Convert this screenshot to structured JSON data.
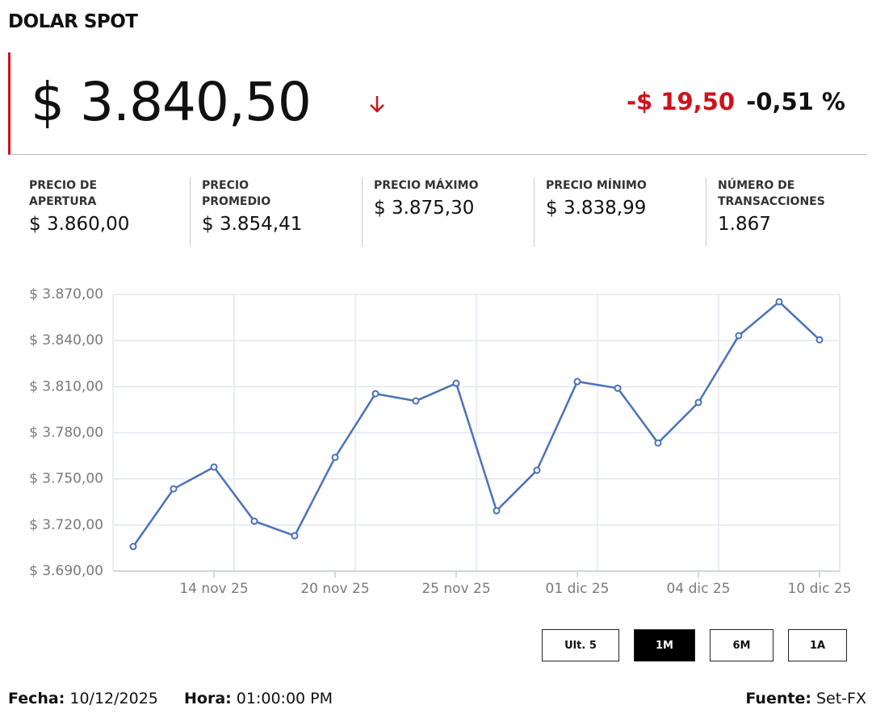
{
  "header": {
    "title": "DOLAR SPOT"
  },
  "quote": {
    "price": "$ 3.840,50",
    "change": "-$ 19,50",
    "change_percent": "-0,51 %"
  },
  "stats": [
    {
      "label": "PRECIO DE\nAPERTURA",
      "value": "$ 3.860,00"
    },
    {
      "label": "PRECIO\nPROMEDIO",
      "value": "$ 3.854,41"
    },
    {
      "label": "PRECIO MÁXIMO",
      "value": "$ 3.875,30"
    },
    {
      "label": "PRECIO MÍNIMO",
      "value": "$ 3.838,99"
    },
    {
      "label": "NÚMERO DE\nTRANSACCIONES",
      "value": "1.867"
    }
  ],
  "chart_data": {
    "type": "line",
    "categories": [
      null,
      null,
      "14 nov 25",
      null,
      null,
      "20 nov 25",
      null,
      null,
      "25 nov 25",
      null,
      null,
      "01 dic 25",
      null,
      null,
      "04 dic 25",
      null,
      null,
      "10 dic 25"
    ],
    "values": [
      3706,
      3743.5,
      3757.7,
      3722.5,
      3713,
      3764,
      3805.4,
      3800.7,
      3812.2,
      3729.3,
      3755.6,
      3813.3,
      3809,
      3773.4,
      3799.7,
      3843.2,
      3865.2,
      3840.5
    ],
    "color": "#4a72b8",
    "ylim": [
      3690,
      3870
    ],
    "yticks": [
      {
        "value": 3690,
        "label": "$ 3.690,00"
      },
      {
        "value": 3720,
        "label": "$ 3.720,00"
      },
      {
        "value": 3750,
        "label": "$ 3.750,00"
      },
      {
        "value": 3780,
        "label": "$ 3.780,00"
      },
      {
        "value": 3810,
        "label": "$ 3.810,00"
      },
      {
        "value": 3840,
        "label": "$ 3.840,00"
      },
      {
        "value": 3870,
        "label": "$ 3.870,00"
      }
    ],
    "grid": true
  },
  "range_buttons": [
    "Ult. 5",
    "1M",
    "6M",
    "1A"
  ],
  "active_button": 1,
  "footer": {
    "date_label": "Fecha:",
    "date": "10/12/2025",
    "time_label": "Hora:",
    "time": "01:00:00 PM",
    "source_label": "Fuente:",
    "source": "Set-FX"
  }
}
